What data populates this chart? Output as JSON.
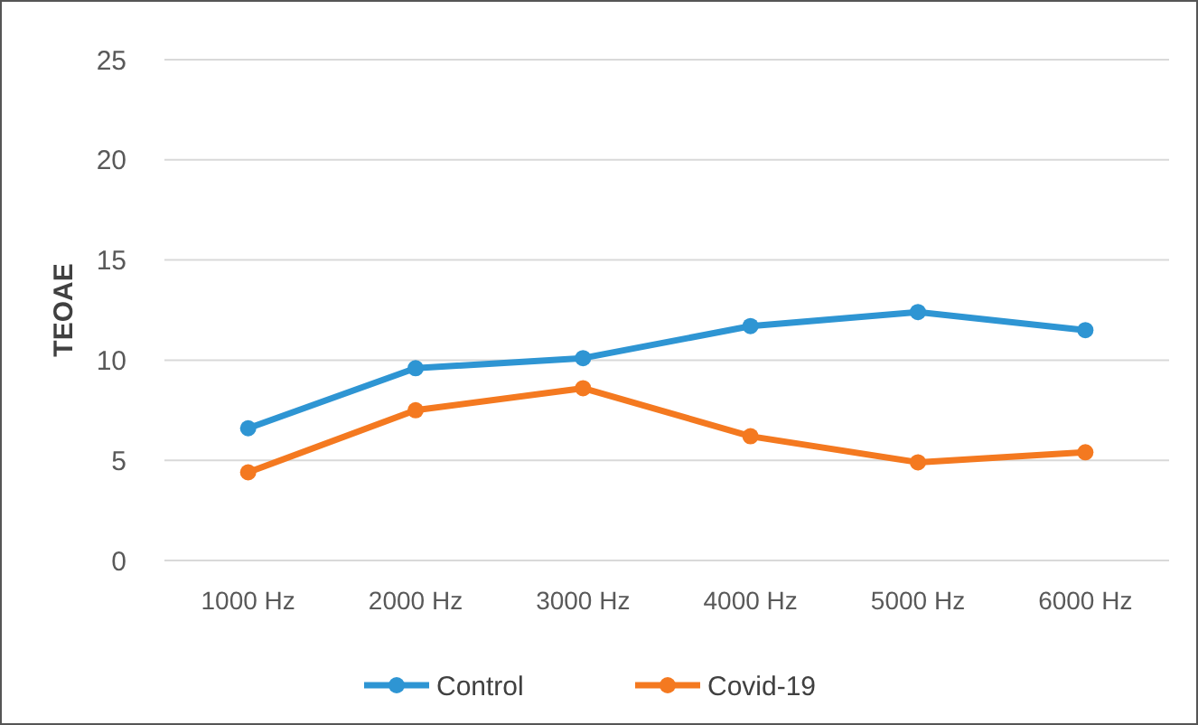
{
  "chart_data": {
    "type": "line",
    "ylabel": "TEOAE",
    "categories": [
      "1000 Hz",
      "2000 Hz",
      "3000 Hz",
      "4000 Hz",
      "5000 Hz",
      "6000 Hz"
    ],
    "series": [
      {
        "name": "Control",
        "color": "#2e95d3",
        "values": [
          6.6,
          9.6,
          10.1,
          11.7,
          12.4,
          11.5
        ]
      },
      {
        "name": "Covid-19",
        "color": "#f47920",
        "values": [
          4.4,
          7.5,
          8.6,
          6.2,
          4.9,
          5.4
        ]
      }
    ],
    "ylim": [
      0,
      25
    ],
    "yticks": [
      0,
      5,
      10,
      15,
      20,
      25
    ],
    "grid": "y",
    "legend": "bottom",
    "marker": "circle",
    "line_style": "solid"
  }
}
